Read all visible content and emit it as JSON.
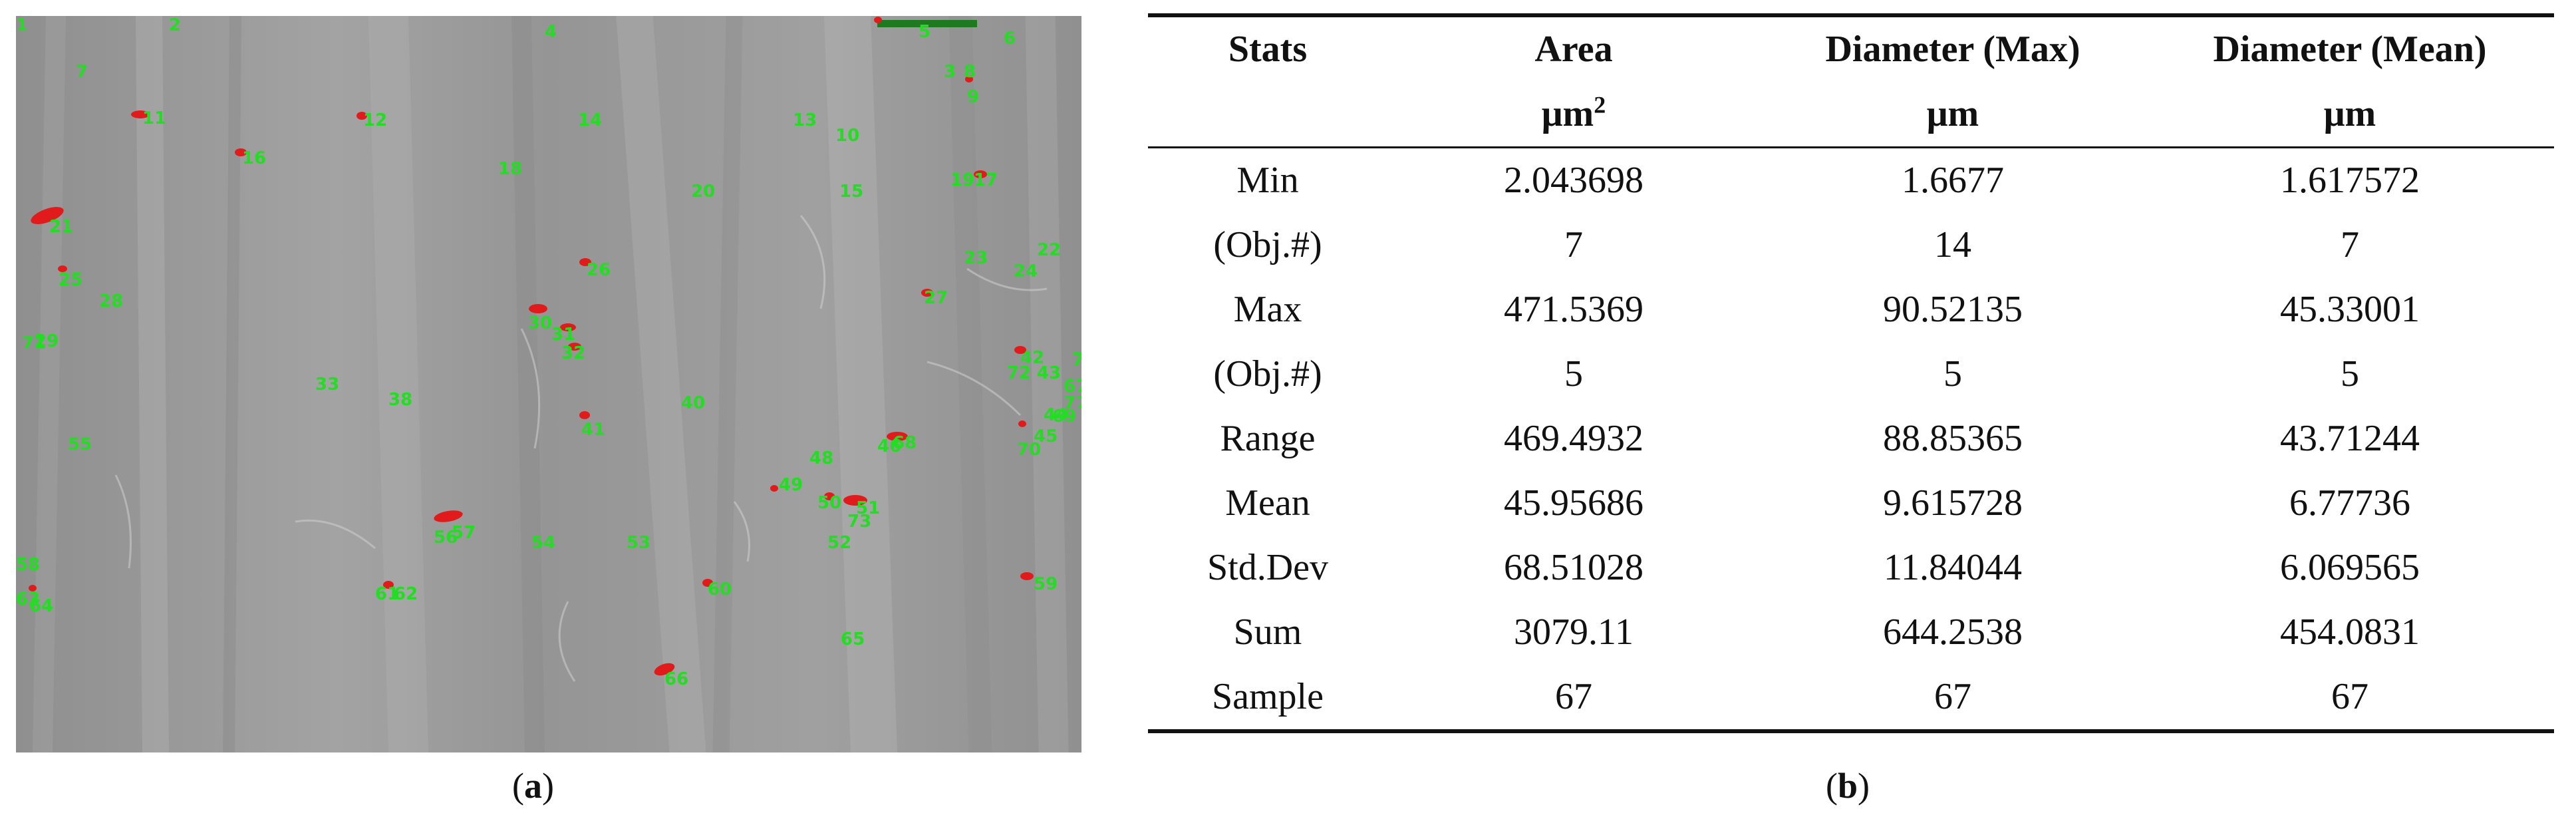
{
  "figure": {
    "panel_a": {
      "caption_letter": "a",
      "object_labels": [
        "1",
        "2",
        "3",
        "4",
        "5",
        "6",
        "7",
        "8",
        "9",
        "10",
        "11",
        "12",
        "13",
        "14",
        "15",
        "16",
        "17",
        "18",
        "19",
        "20",
        "21",
        "22",
        "23",
        "24",
        "25",
        "26",
        "27",
        "28",
        "29",
        "30",
        "31",
        "32",
        "33",
        "38",
        "40",
        "41",
        "42",
        "43",
        "44",
        "45",
        "46",
        "48",
        "49",
        "50",
        "51",
        "52",
        "53",
        "54",
        "55",
        "56",
        "57",
        "58",
        "59",
        "60",
        "61",
        "62",
        "63",
        "64",
        "65",
        "66",
        "67",
        "68",
        "69",
        "70",
        "71",
        "72",
        "73",
        "77",
        "78"
      ]
    },
    "panel_b": {
      "caption_letter": "b",
      "table": {
        "headers": [
          "Stats",
          "Area",
          "Diameter (Max)",
          "Diameter (Mean)"
        ],
        "units": [
          "",
          "μm",
          "μm",
          "μm"
        ],
        "area_unit_superscript": "2",
        "rows": [
          {
            "label": "Min",
            "values": [
              "2.043698",
              "1.6677",
              "1.617572"
            ]
          },
          {
            "label": "(Obj.#)",
            "values": [
              "7",
              "14",
              "7"
            ]
          },
          {
            "label": "Max",
            "values": [
              "471.5369",
              "90.52135",
              "45.33001"
            ]
          },
          {
            "label": "(Obj.#)",
            "values": [
              "5",
              "5",
              "5"
            ]
          },
          {
            "label": "Range",
            "values": [
              "469.4932",
              "88.85365",
              "43.71244"
            ]
          },
          {
            "label": "Mean",
            "values": [
              "45.95686",
              "9.615728",
              "6.77736"
            ]
          },
          {
            "label": "Std.Dev",
            "values": [
              "68.51028",
              "11.84044",
              "6.069565"
            ]
          },
          {
            "label": "Sum",
            "values": [
              "3079.11",
              "644.2538",
              "454.0831"
            ]
          },
          {
            "label": "Sample",
            "values": [
              "67",
              "67",
              "67"
            ]
          }
        ]
      }
    }
  }
}
